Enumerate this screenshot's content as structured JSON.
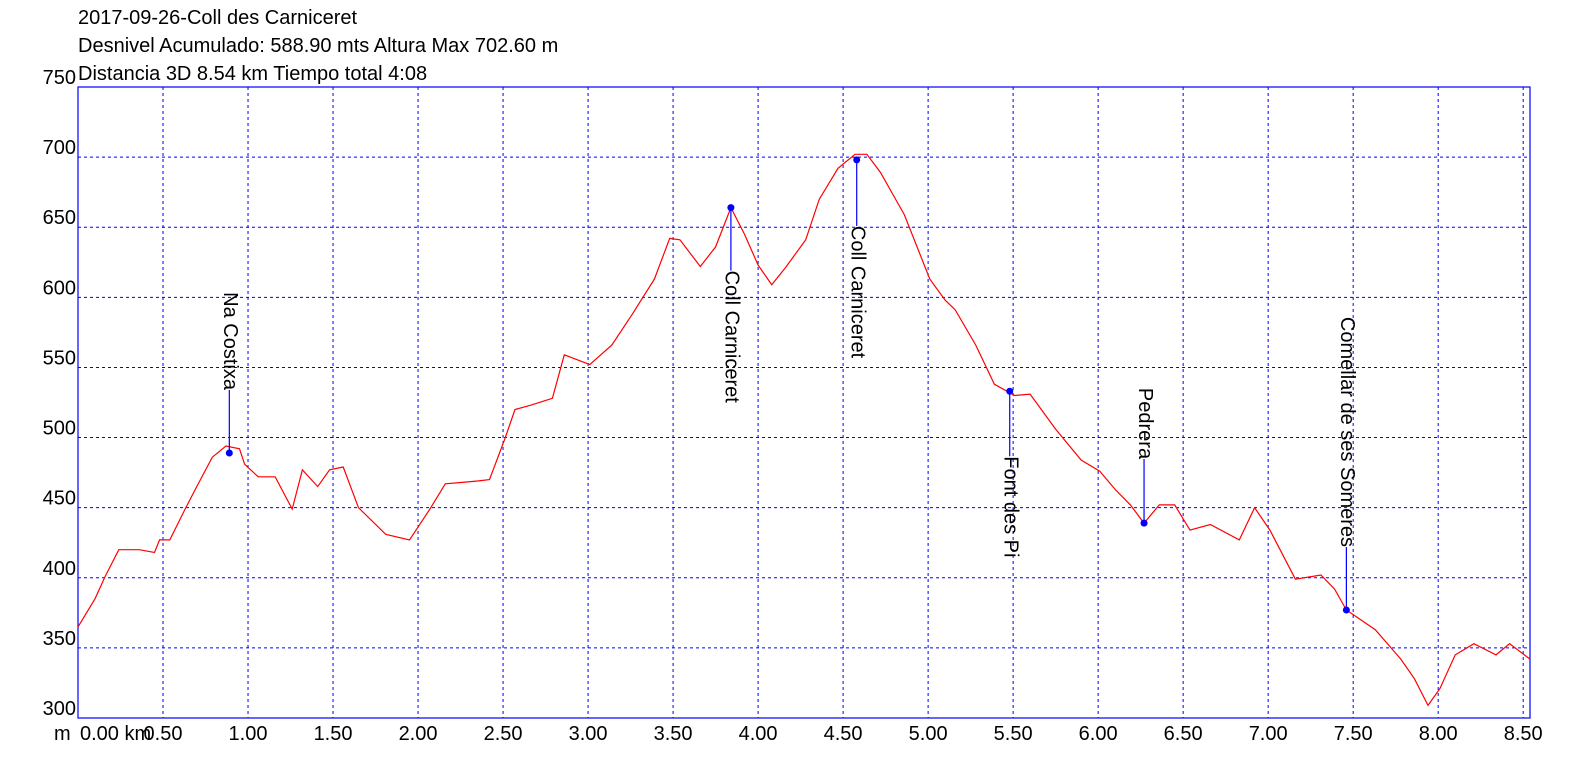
{
  "chart_data": {
    "type": "line",
    "title_lines": [
      "2017-09-26-Coll des Carniceret",
      "Desnivel Acumulado: 588.90 mts  Altura Max 702.60 m",
      "Distancia 3D 8.54 km  Tiempo total 4:08"
    ],
    "y_label": "m",
    "x": [
      0,
      0.1,
      0.16,
      0.24,
      0.36,
      0.45,
      0.48,
      0.54,
      0.63,
      0.69,
      0.79,
      0.87,
      0.95,
      0.98,
      1.06,
      1.16,
      1.26,
      1.32,
      1.41,
      1.48,
      1.56,
      1.65,
      1.81,
      1.95,
      2.07,
      2.16,
      2.26,
      2.35,
      2.42,
      2.51,
      2.57,
      2.66,
      2.79,
      2.86,
      3.01,
      3.14,
      3.26,
      3.39,
      3.48,
      3.54,
      3.66,
      3.75,
      3.84,
      3.92,
      4.0,
      4.08,
      4.16,
      4.28,
      4.36,
      4.47,
      4.57,
      4.64,
      4.72,
      4.86,
      5.01,
      5.1,
      5.16,
      5.28,
      5.39,
      5.51,
      5.6,
      5.75,
      5.9,
      6.01,
      6.1,
      6.19,
      6.27,
      6.36,
      6.45,
      6.54,
      6.66,
      6.83,
      6.92,
      7.01,
      7.16,
      7.31,
      7.39,
      7.46,
      7.63,
      7.78,
      7.86,
      7.94,
      8.01,
      8.1,
      8.21,
      8.34,
      8.42,
      8.54
    ],
    "series": [
      {
        "color": "#ff0000",
        "values": [
          365,
          385,
          401,
          420,
          420,
          418,
          427,
          427,
          449,
          463,
          486,
          494,
          492,
          481,
          472,
          472,
          449,
          477,
          465,
          477,
          479,
          450,
          431,
          427,
          449,
          467,
          468,
          469,
          470,
          499,
          520,
          523,
          528,
          559,
          552,
          566,
          588,
          613,
          642,
          641,
          622,
          636,
          664,
          645,
          623,
          609,
          621,
          641,
          670,
          692,
          702,
          702,
          689,
          659,
          613,
          598,
          591,
          566,
          538,
          530,
          531,
          506,
          484,
          476,
          463,
          452,
          439,
          452,
          452,
          434,
          438,
          427,
          450,
          434,
          399,
          402,
          392,
          377,
          363,
          342,
          328,
          309,
          321,
          345,
          353,
          345,
          353,
          342
        ]
      }
    ],
    "waypoints": [
      {
        "name": "Na Costixa",
        "x": 0.89,
        "y": 489
      },
      {
        "name": "Coll Carniceret",
        "x": 3.84,
        "y": 664
      },
      {
        "name": "Coll Carniceret",
        "x": 4.58,
        "y": 698
      },
      {
        "name": "Font des Pi",
        "x": 5.48,
        "y": 533
      },
      {
        "name": "Pedrera",
        "x": 6.27,
        "y": 439
      },
      {
        "name": "Comellar de ses Someres",
        "x": 7.46,
        "y": 377
      }
    ],
    "waypoint_color": "#0000ff",
    "grid_color": "#0000ff",
    "xlim": [
      0,
      8.54
    ],
    "ylim": [
      300,
      750
    ],
    "xticks": [
      {
        "value": 0,
        "label": "0.00 km"
      },
      {
        "value": 0.5,
        "label": "0.50"
      },
      {
        "value": 1,
        "label": "1.00"
      },
      {
        "value": 1.5,
        "label": "1.50"
      },
      {
        "value": 2,
        "label": "2.00"
      },
      {
        "value": 2.5,
        "label": "2.50"
      },
      {
        "value": 3,
        "label": "3.00"
      },
      {
        "value": 3.5,
        "label": "3.50"
      },
      {
        "value": 4,
        "label": "4.00"
      },
      {
        "value": 4.5,
        "label": "4.50"
      },
      {
        "value": 5,
        "label": "5.00"
      },
      {
        "value": 5.5,
        "label": "5.50"
      },
      {
        "value": 6,
        "label": "6.00"
      },
      {
        "value": 6.5,
        "label": "6.50"
      },
      {
        "value": 7,
        "label": "7.00"
      },
      {
        "value": 7.5,
        "label": "7.50"
      },
      {
        "value": 8,
        "label": "8.00"
      },
      {
        "value": 8.5,
        "label": "8.50"
      }
    ],
    "yticks": [
      300,
      350,
      400,
      450,
      500,
      550,
      600,
      650,
      700,
      750
    ],
    "grid": true
  }
}
